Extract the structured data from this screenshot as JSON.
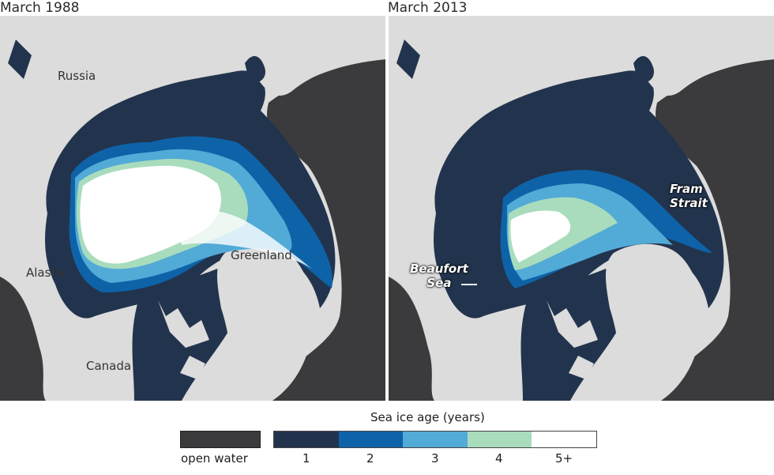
{
  "panels": {
    "left": {
      "title": "March 1988",
      "labels": {
        "russia": "Russia",
        "greenland": "Greenland",
        "alaska": "Alaska",
        "canada": "Canada"
      }
    },
    "right": {
      "title": "March 2013",
      "callouts": {
        "fram": "Fram\nStrait",
        "beaufort": "Beaufort\nSea"
      }
    }
  },
  "legend": {
    "title": "Sea ice age (years)",
    "open_water": {
      "label": "open water",
      "color": "#3b3b3d"
    },
    "ages": [
      {
        "label": "1",
        "color": "#22344d"
      },
      {
        "label": "2",
        "color": "#0e62a8"
      },
      {
        "label": "3",
        "color": "#52aad6"
      },
      {
        "label": "4",
        "color": "#a8dcbd"
      },
      {
        "label": "5+",
        "color": "#ffffff"
      }
    ]
  },
  "colors": {
    "land": "#dcdcdc",
    "open_water": "#3b3b3d",
    "first_year_ice": "#22344d"
  }
}
